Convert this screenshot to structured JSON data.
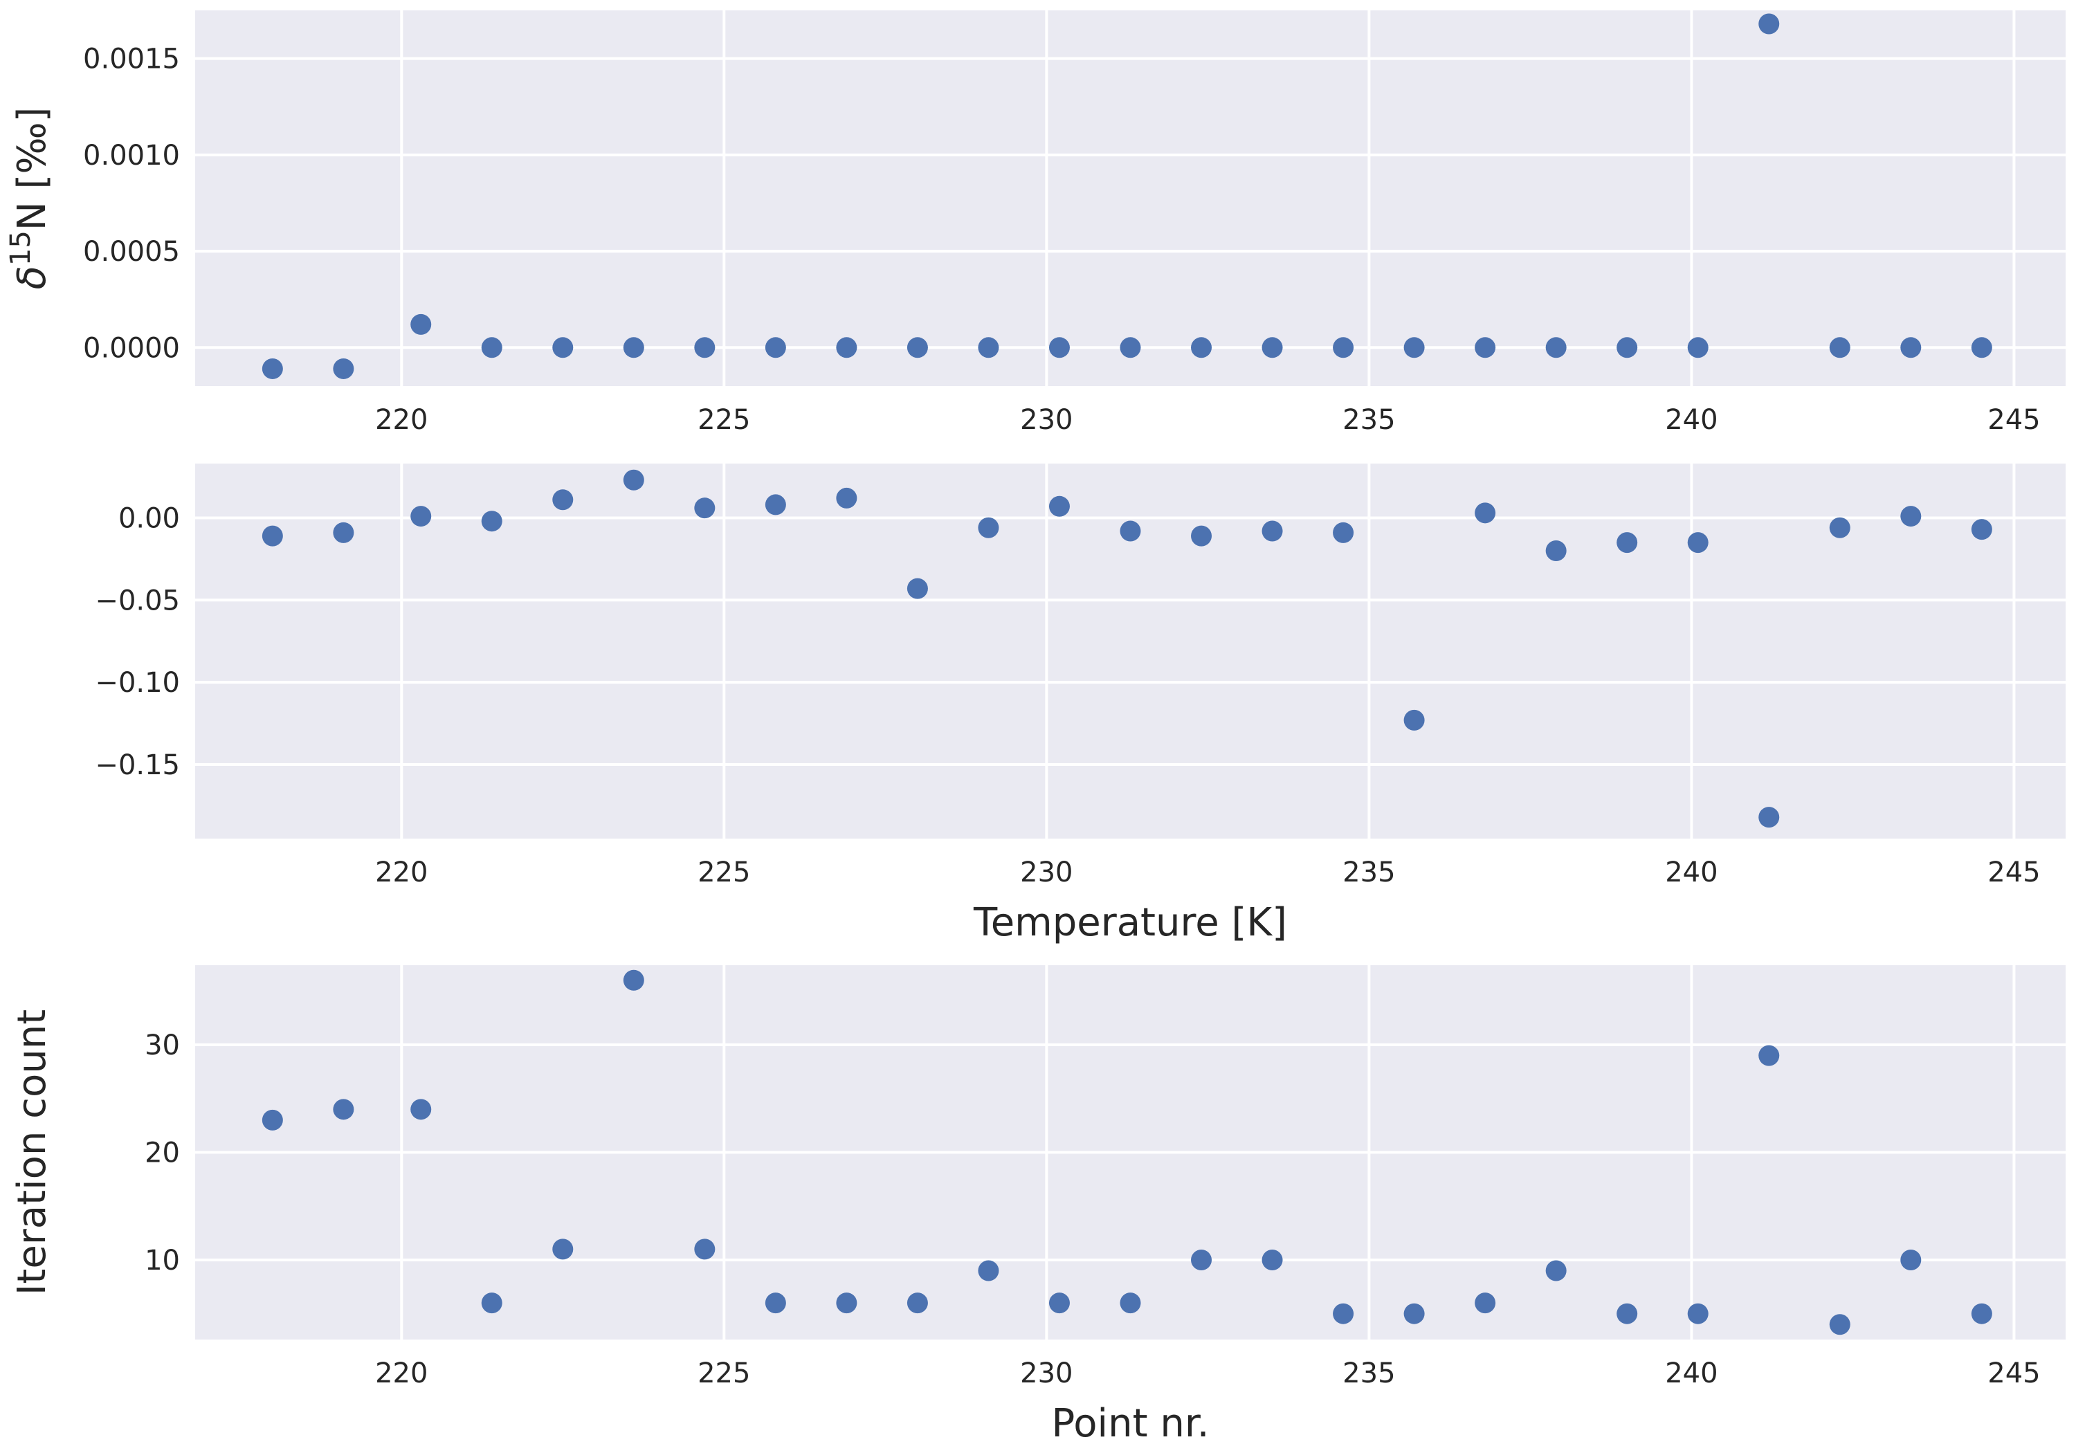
{
  "chart_data": [
    {
      "type": "scatter",
      "xlabel": "",
      "ylabel": "δ15N [‰]",
      "ylabel_parts": {
        "base": "δ",
        "sup": "15",
        "rest": "N [‰]"
      },
      "xlim": [
        216.8,
        245.8
      ],
      "ylim": [
        -0.0002,
        0.00175
      ],
      "xticks": [
        220,
        225,
        230,
        235,
        240,
        245
      ],
      "xtick_labels": [
        "220",
        "225",
        "230",
        "235",
        "240",
        "245"
      ],
      "yticks": [
        0.0,
        0.0005,
        0.001,
        0.0015
      ],
      "ytick_labels": [
        "0.0000",
        "0.0005",
        "0.0010",
        "0.0015"
      ],
      "grid": true,
      "color": "#4c72b0",
      "x": [
        218.0,
        219.1,
        220.3,
        221.4,
        222.5,
        223.6,
        224.7,
        225.8,
        226.9,
        228.0,
        229.1,
        230.2,
        231.3,
        232.4,
        233.5,
        234.6,
        235.7,
        236.8,
        237.9,
        239.0,
        240.1,
        241.2,
        242.3,
        243.4,
        244.5
      ],
      "y": [
        -0.00011,
        -0.00011,
        0.00012,
        0.0,
        0.0,
        0.0,
        0.0,
        0.0,
        0.0,
        0.0,
        0.0,
        0.0,
        0.0,
        0.0,
        0.0,
        0.0,
        0.0,
        0.0,
        0.0,
        0.0,
        0.0,
        0.00168,
        0.0,
        0.0,
        0.0
      ]
    },
    {
      "type": "scatter",
      "xlabel": "Temperature [K]",
      "ylabel": "",
      "xlim": [
        216.8,
        245.8
      ],
      "ylim": [
        -0.195,
        0.033
      ],
      "xticks": [
        220,
        225,
        230,
        235,
        240,
        245
      ],
      "xtick_labels": [
        "220",
        "225",
        "230",
        "235",
        "240",
        "245"
      ],
      "yticks": [
        0.0,
        -0.05,
        -0.1,
        -0.15
      ],
      "ytick_labels": [
        "0.00",
        "−0.05",
        "−0.10",
        "−0.15"
      ],
      "grid": true,
      "color": "#4c72b0",
      "x": [
        218.0,
        219.1,
        220.3,
        221.4,
        222.5,
        223.6,
        224.7,
        225.8,
        226.9,
        228.0,
        229.1,
        230.2,
        231.3,
        232.4,
        233.5,
        234.6,
        235.7,
        236.8,
        237.9,
        239.0,
        240.1,
        241.2,
        242.3,
        243.4,
        244.5
      ],
      "y": [
        -0.011,
        -0.009,
        0.001,
        -0.002,
        0.011,
        0.023,
        0.006,
        0.008,
        0.012,
        -0.043,
        -0.006,
        0.007,
        -0.008,
        -0.011,
        -0.008,
        -0.009,
        -0.123,
        0.003,
        -0.02,
        -0.015,
        -0.015,
        -0.182,
        -0.006,
        0.001,
        -0.007
      ]
    },
    {
      "type": "scatter",
      "xlabel": "Point nr.",
      "ylabel": "Iteration count",
      "xlim": [
        216.8,
        245.8
      ],
      "ylim": [
        2.6,
        37.4
      ],
      "xticks": [
        220,
        225,
        230,
        235,
        240,
        245
      ],
      "xtick_labels": [
        "220",
        "225",
        "230",
        "235",
        "240",
        "245"
      ],
      "yticks": [
        10,
        20,
        30
      ],
      "ytick_labels": [
        "10",
        "20",
        "30"
      ],
      "grid": true,
      "color": "#4c72b0",
      "x": [
        218.0,
        219.1,
        220.3,
        221.4,
        222.5,
        223.6,
        224.7,
        225.8,
        226.9,
        228.0,
        229.1,
        230.2,
        231.3,
        232.4,
        233.5,
        234.6,
        235.7,
        236.8,
        237.9,
        239.0,
        240.1,
        241.2,
        242.3,
        243.4,
        244.5
      ],
      "y": [
        23,
        24,
        24,
        6,
        11,
        36,
        11,
        6,
        6,
        6,
        9,
        6,
        6,
        10,
        10,
        5,
        5,
        6,
        9,
        5,
        5,
        29,
        4,
        10,
        5
      ]
    }
  ]
}
